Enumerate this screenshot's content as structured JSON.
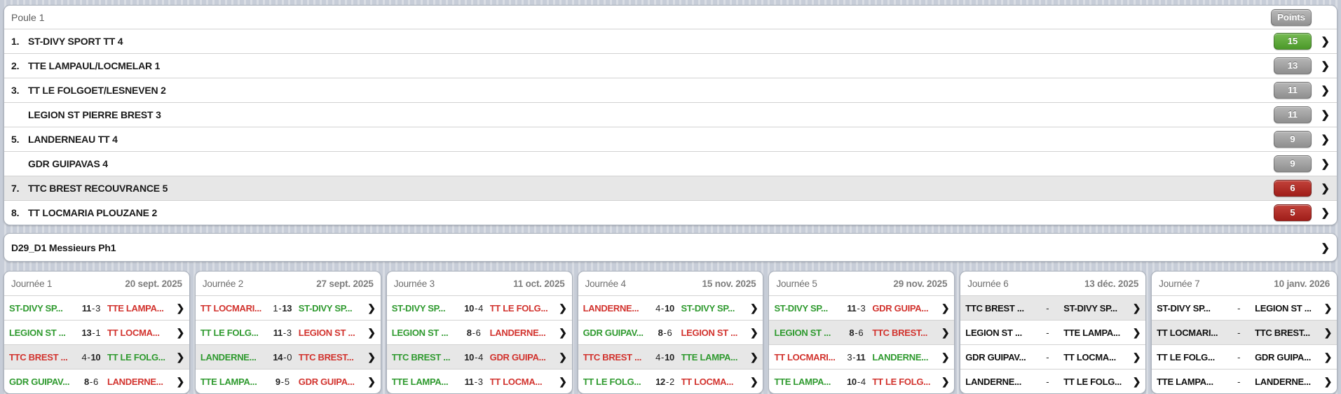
{
  "colors": {
    "win_green": "#2f9a2f",
    "loss_red": "#d2332e",
    "badge_green_top": "#76bb53",
    "badge_green_bottom": "#4b9929",
    "badge_gray_top": "#b6b6b6",
    "badge_gray_bottom": "#8f8f8f",
    "badge_red_top": "#c2423a",
    "badge_red_bottom": "#a01e1a",
    "highlight_gray": "#e7e7e7"
  },
  "standings": {
    "title": "Poule 1",
    "points_label": "Points",
    "rows": [
      {
        "rank": "1.",
        "team": "ST-DIVY SPORT TT 4",
        "points": "15",
        "badge": "green",
        "highlight": false
      },
      {
        "rank": "2.",
        "team": "TTE LAMPAUL/LOCMELAR 1",
        "points": "13",
        "badge": "gray",
        "highlight": false
      },
      {
        "rank": "3.",
        "team": "TT LE FOLGOET/LESNEVEN 2",
        "points": "11",
        "badge": "gray",
        "highlight": false
      },
      {
        "rank": "",
        "team": "LEGION ST PIERRE BREST 3",
        "points": "11",
        "badge": "gray",
        "highlight": false
      },
      {
        "rank": "5.",
        "team": "LANDERNEAU TT 4",
        "points": "9",
        "badge": "gray",
        "highlight": false
      },
      {
        "rank": "",
        "team": "GDR GUIPAVAS 4",
        "points": "9",
        "badge": "gray",
        "highlight": false
      },
      {
        "rank": "7.",
        "team": "TTC BREST RECOUVRANCE 5",
        "points": "6",
        "badge": "red",
        "highlight": true
      },
      {
        "rank": "8.",
        "team": "TT LOCMARIA PLOUZANE 2",
        "points": "5",
        "badge": "red",
        "highlight": false
      }
    ]
  },
  "division": {
    "label": "D29_D1 Messieurs Ph1"
  },
  "rounds": [
    {
      "title": "Journée 1",
      "date": "20 sept. 2025",
      "matches": [
        {
          "home": "ST-DIVY SP...",
          "away": "TTE LAMPA...",
          "score": {
            "home": "11",
            "away": "3"
          },
          "winner": "home",
          "highlight": false
        },
        {
          "home": "LEGION ST ...",
          "away": "TT LOCMA...",
          "score": {
            "home": "13",
            "away": "1"
          },
          "winner": "home",
          "highlight": false
        },
        {
          "home": "TTC BREST ...",
          "away": "TT LE FOLG...",
          "score": {
            "home": "4",
            "away": "10"
          },
          "winner": "away",
          "highlight": true
        },
        {
          "home": "GDR GUIPAV...",
          "away": "LANDERNE...",
          "score": {
            "home": "8",
            "away": "6"
          },
          "winner": "home",
          "highlight": false
        }
      ]
    },
    {
      "title": "Journée 2",
      "date": "27 sept. 2025",
      "matches": [
        {
          "home": "TT LOCMARI...",
          "away": "ST-DIVY SP...",
          "score": {
            "home": "1",
            "away": "13"
          },
          "winner": "away",
          "highlight": false
        },
        {
          "home": "TT LE FOLG...",
          "away": "LEGION ST ...",
          "score": {
            "home": "11",
            "away": "3"
          },
          "winner": "home",
          "highlight": false
        },
        {
          "home": "LANDERNE...",
          "away": "TTC BREST...",
          "score": {
            "home": "14",
            "away": "0"
          },
          "winner": "home",
          "highlight": true
        },
        {
          "home": "TTE LAMPA...",
          "away": "GDR GUIPA...",
          "score": {
            "home": "9",
            "away": "5"
          },
          "winner": "home",
          "highlight": false
        }
      ]
    },
    {
      "title": "Journée 3",
      "date": "11 oct. 2025",
      "matches": [
        {
          "home": "ST-DIVY SP...",
          "away": "TT LE FOLG...",
          "score": {
            "home": "10",
            "away": "4"
          },
          "winner": "home",
          "highlight": false
        },
        {
          "home": "LEGION ST ...",
          "away": "LANDERNE...",
          "score": {
            "home": "8",
            "away": "6"
          },
          "winner": "home",
          "highlight": false
        },
        {
          "home": "TTC BREST ...",
          "away": "GDR GUIPA...",
          "score": {
            "home": "10",
            "away": "4"
          },
          "winner": "home",
          "highlight": true
        },
        {
          "home": "TTE LAMPA...",
          "away": "TT LOCMA...",
          "score": {
            "home": "11",
            "away": "3"
          },
          "winner": "home",
          "highlight": false
        }
      ]
    },
    {
      "title": "Journée 4",
      "date": "15 nov. 2025",
      "matches": [
        {
          "home": "LANDERNE...",
          "away": "ST-DIVY SP...",
          "score": {
            "home": "4",
            "away": "10"
          },
          "winner": "away",
          "highlight": false
        },
        {
          "home": "GDR GUIPAV...",
          "away": "LEGION ST ...",
          "score": {
            "home": "8",
            "away": "6"
          },
          "winner": "home",
          "highlight": false
        },
        {
          "home": "TTC BREST ...",
          "away": "TTE LAMPA...",
          "score": {
            "home": "4",
            "away": "10"
          },
          "winner": "away",
          "highlight": true
        },
        {
          "home": "TT LE FOLG...",
          "away": "TT LOCMA...",
          "score": {
            "home": "12",
            "away": "2"
          },
          "winner": "home",
          "highlight": false
        }
      ]
    },
    {
      "title": "Journée 5",
      "date": "29 nov. 2025",
      "matches": [
        {
          "home": "ST-DIVY SP...",
          "away": "GDR GUIPA...",
          "score": {
            "home": "11",
            "away": "3"
          },
          "winner": "home",
          "highlight": false
        },
        {
          "home": "LEGION ST ...",
          "away": "TTC BREST...",
          "score": {
            "home": "8",
            "away": "6"
          },
          "winner": "home",
          "highlight": true
        },
        {
          "home": "TT LOCMARI...",
          "away": "LANDERNE...",
          "score": {
            "home": "3",
            "away": "11"
          },
          "winner": "away",
          "highlight": false
        },
        {
          "home": "TTE LAMPA...",
          "away": "TT LE FOLG...",
          "score": {
            "home": "10",
            "away": "4"
          },
          "winner": "home",
          "highlight": false
        }
      ]
    },
    {
      "title": "Journée 6",
      "date": "13 déc. 2025",
      "matches": [
        {
          "home": "TTC BREST ...",
          "away": "ST-DIVY SP...",
          "score": {
            "home": "",
            "away": ""
          },
          "winner": null,
          "highlight": true
        },
        {
          "home": "LEGION ST ...",
          "away": "TTE LAMPA...",
          "score": {
            "home": "",
            "away": ""
          },
          "winner": null,
          "highlight": false
        },
        {
          "home": "GDR GUIPAV...",
          "away": "TT LOCMA...",
          "score": {
            "home": "",
            "away": ""
          },
          "winner": null,
          "highlight": false
        },
        {
          "home": "LANDERNE...",
          "away": "TT LE FOLG...",
          "score": {
            "home": "",
            "away": ""
          },
          "winner": null,
          "highlight": false
        }
      ]
    },
    {
      "title": "Journée 7",
      "date": "10 janv. 2026",
      "matches": [
        {
          "home": "ST-DIVY SP...",
          "away": "LEGION ST ...",
          "score": {
            "home": "",
            "away": ""
          },
          "winner": null,
          "highlight": false
        },
        {
          "home": "TT LOCMARI...",
          "away": "TTC BREST...",
          "score": {
            "home": "",
            "away": ""
          },
          "winner": null,
          "highlight": true
        },
        {
          "home": "TT LE FOLG...",
          "away": "GDR GUIPA...",
          "score": {
            "home": "",
            "away": ""
          },
          "winner": null,
          "highlight": false
        },
        {
          "home": "TTE LAMPA...",
          "away": "LANDERNE...",
          "score": {
            "home": "",
            "away": ""
          },
          "winner": null,
          "highlight": false
        }
      ]
    }
  ]
}
